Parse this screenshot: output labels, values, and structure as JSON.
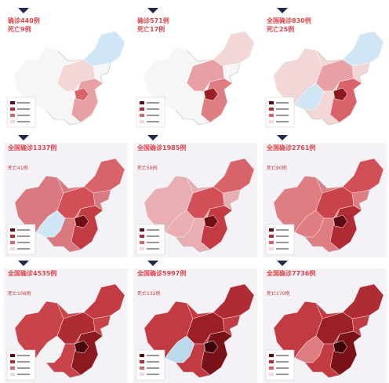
{
  "panels": [
    {
      "confirmed": "确诊440例",
      "deaths": "死亡9例"
    },
    {
      "confirmed": "确诊571例",
      "deaths": "死亡17例"
    },
    {
      "confirmed": "全国确诊830例",
      "deaths": "死亡25例"
    },
    {
      "confirmed": "全国确诊1337例",
      "deaths": "死亡41例"
    },
    {
      "confirmed": "全国确诊1985例",
      "deaths": "死亡56例"
    },
    {
      "confirmed": "全国确诊2761例",
      "deaths": "死亡80例"
    },
    {
      "confirmed": "全国确诊4535例",
      "deaths": "死亡106例"
    },
    {
      "confirmed": "全国确诊5997例",
      "deaths": "死亡132例"
    },
    {
      "confirmed": "全国确诊7736例",
      "deaths": "死亡170例"
    }
  ]
}
